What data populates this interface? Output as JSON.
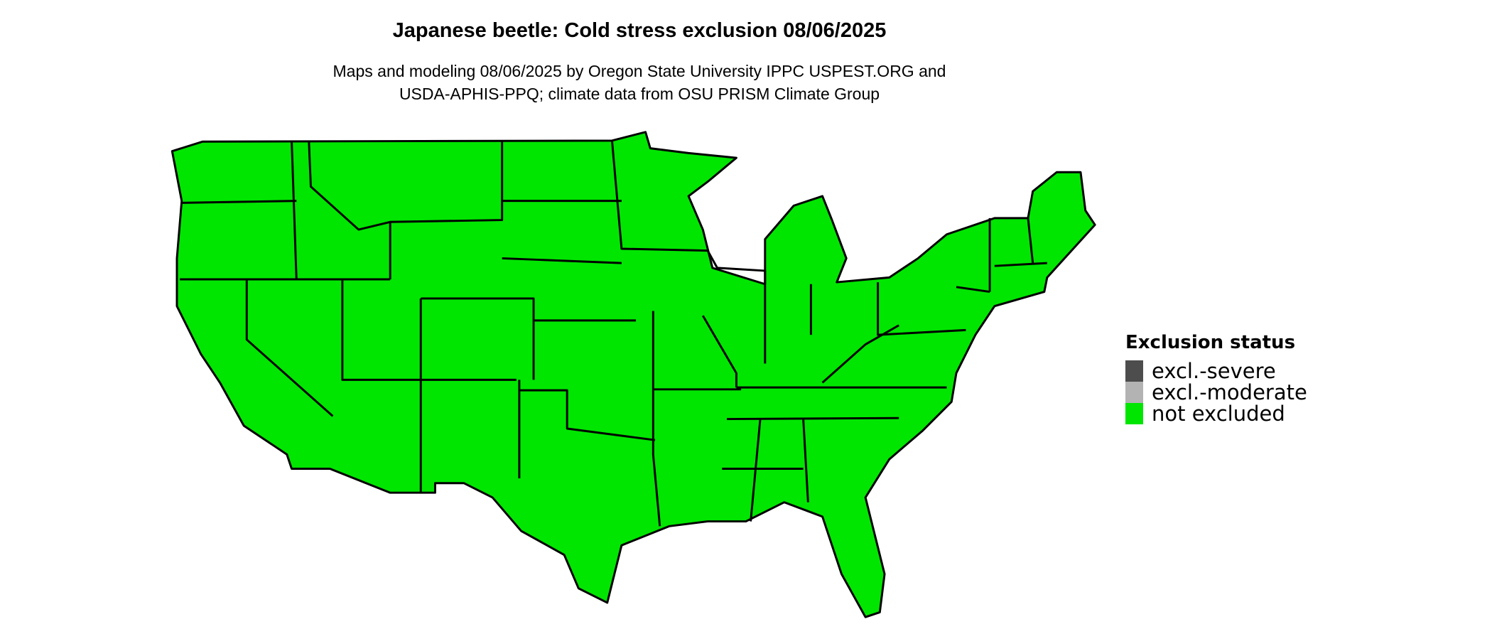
{
  "title": "Japanese beetle: Cold stress exclusion 08/06/2025",
  "subtitle": {
    "line1": "Maps and modeling 08/06/2025 by Oregon State University IPPC USPEST.ORG and",
    "line2": "USDA-APHIS-PPQ; climate data from OSU PRISM Climate Group"
  },
  "map": {
    "region": "contiguous United States",
    "fill_status": "not excluded",
    "fill_color": "#00e600",
    "border_color": "#000000"
  },
  "legend": {
    "title": "Exclusion status",
    "items": [
      {
        "label": "excl.-severe",
        "color": "#4d4d4d"
      },
      {
        "label": "excl.-moderate",
        "color": "#b3b3b3"
      },
      {
        "label": "not excluded",
        "color": "#00e600"
      }
    ]
  }
}
